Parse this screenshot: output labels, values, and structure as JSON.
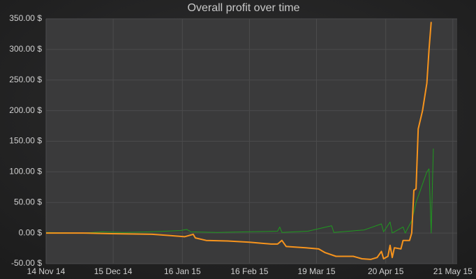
{
  "chart_data": {
    "type": "line",
    "title": "Overall profit over time",
    "xlim": [
      "2014-11-14",
      "2015-05-23"
    ],
    "xticks": [
      {
        "value": "2014-11-14",
        "label": "14 Nov 14"
      },
      {
        "value": "2014-12-15",
        "label": "15 Dec 14"
      },
      {
        "value": "2015-01-16",
        "label": "16 Jan 15"
      },
      {
        "value": "2015-02-16",
        "label": "16 Feb 15"
      },
      {
        "value": "2015-03-19",
        "label": "19 Mar 15"
      },
      {
        "value": "2015-04-20",
        "label": "20 Apr 15"
      },
      {
        "value": "2015-05-21",
        "label": "21 May 15"
      }
    ],
    "ylim": [
      -50,
      350
    ],
    "yticks": [
      {
        "value": -50,
        "label": "-50.00 $"
      },
      {
        "value": 0,
        "label": "0.00 $"
      },
      {
        "value": 50,
        "label": "50.00 $"
      },
      {
        "value": 100,
        "label": "100.00 $"
      },
      {
        "value": 150,
        "label": "150.00 $"
      },
      {
        "value": 200,
        "label": "200.00 $"
      },
      {
        "value": 250,
        "label": "250.00 $"
      },
      {
        "value": 300,
        "label": "300.00 $"
      },
      {
        "value": 350,
        "label": "350.00 $"
      }
    ],
    "grid": true,
    "series": [
      {
        "color": "#1f9a1f",
        "width": 1,
        "x": [
          "2014-11-14",
          "2014-12-01",
          "2014-12-10",
          "2014-12-20",
          "2015-01-01",
          "2015-01-15",
          "2015-01-18",
          "2015-01-20",
          "2015-02-01",
          "2015-02-15",
          "2015-03-01",
          "2015-03-02",
          "2015-03-03",
          "2015-03-15",
          "2015-03-26",
          "2015-03-27",
          "2015-04-10",
          "2015-04-18",
          "2015-04-19",
          "2015-04-22",
          "2015-04-23",
          "2015-04-28",
          "2015-04-29",
          "2015-05-02",
          "2015-05-04",
          "2015-05-06",
          "2015-05-09",
          "2015-05-10",
          "2015-05-11",
          "2015-05-12"
        ],
        "values": [
          1,
          0,
          2,
          1,
          2,
          4,
          6,
          2,
          1,
          2,
          3,
          10,
          1,
          3,
          12,
          1,
          5,
          15,
          2,
          18,
          0,
          10,
          0,
          20,
          50,
          70,
          100,
          105,
          0,
          138
        ]
      },
      {
        "color": "#f7941d",
        "width": 2,
        "x": [
          "2014-11-14",
          "2014-12-01",
          "2014-12-14",
          "2015-01-02",
          "2015-01-10",
          "2015-01-17",
          "2015-01-21",
          "2015-01-22",
          "2015-01-27",
          "2015-02-06",
          "2015-02-16",
          "2015-02-26",
          "2015-03-01",
          "2015-03-03",
          "2015-03-05",
          "2015-03-14",
          "2015-03-20",
          "2015-03-23",
          "2015-03-28",
          "2015-04-05",
          "2015-04-09",
          "2015-04-13",
          "2015-04-16",
          "2015-04-18",
          "2015-04-19",
          "2015-04-21",
          "2015-04-22",
          "2015-04-23",
          "2015-04-24",
          "2015-04-27",
          "2015-04-28",
          "2015-05-01",
          "2015-05-02",
          "2015-05-03",
          "2015-05-04",
          "2015-05-05",
          "2015-05-07",
          "2015-05-09",
          "2015-05-10",
          "2015-05-11"
        ],
        "values": [
          0,
          0,
          -1,
          -2,
          -4,
          -6,
          -2,
          -8,
          -12,
          -13,
          -15,
          -18,
          -18,
          -12,
          -22,
          -24,
          -26,
          -32,
          -38,
          -38,
          -42,
          -43,
          -40,
          -30,
          -42,
          -38,
          -20,
          -40,
          -24,
          -26,
          -12,
          -12,
          0,
          70,
          72,
          170,
          200,
          245,
          300,
          345
        ]
      }
    ]
  }
}
